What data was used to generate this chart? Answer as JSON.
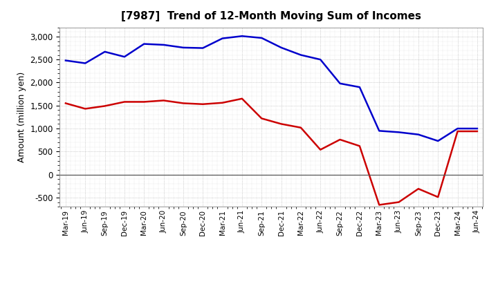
{
  "title": "[7987]  Trend of 12-Month Moving Sum of Incomes",
  "ylabel": "Amount (million yen)",
  "ylim": [
    -700,
    3200
  ],
  "yticks": [
    -500,
    0,
    500,
    1000,
    1500,
    2000,
    2500,
    3000
  ],
  "background_color": "#ffffff",
  "plot_bg_color": "#ffffff",
  "ordinary_income_color": "#0000cc",
  "net_income_color": "#cc0000",
  "line_width": 1.8,
  "x_labels": [
    "Mar-19",
    "Jun-19",
    "Sep-19",
    "Dec-19",
    "Mar-20",
    "Jun-20",
    "Sep-20",
    "Dec-20",
    "Mar-21",
    "Jun-21",
    "Sep-21",
    "Dec-21",
    "Mar-22",
    "Jun-22",
    "Sep-22",
    "Dec-22",
    "Mar-23",
    "Jun-23",
    "Sep-23",
    "Dec-23",
    "Mar-24",
    "Jun-24"
  ],
  "ordinary_income": [
    2480,
    2420,
    2670,
    2560,
    2840,
    2820,
    2760,
    2750,
    2960,
    3010,
    2970,
    2760,
    2600,
    2500,
    1980,
    1900,
    950,
    920,
    870,
    730,
    1000,
    1000
  ],
  "net_income": [
    1550,
    1430,
    1490,
    1580,
    1580,
    1610,
    1550,
    1530,
    1560,
    1650,
    1220,
    1100,
    1020,
    540,
    760,
    620,
    -660,
    -600,
    -310,
    -490,
    940,
    940
  ]
}
